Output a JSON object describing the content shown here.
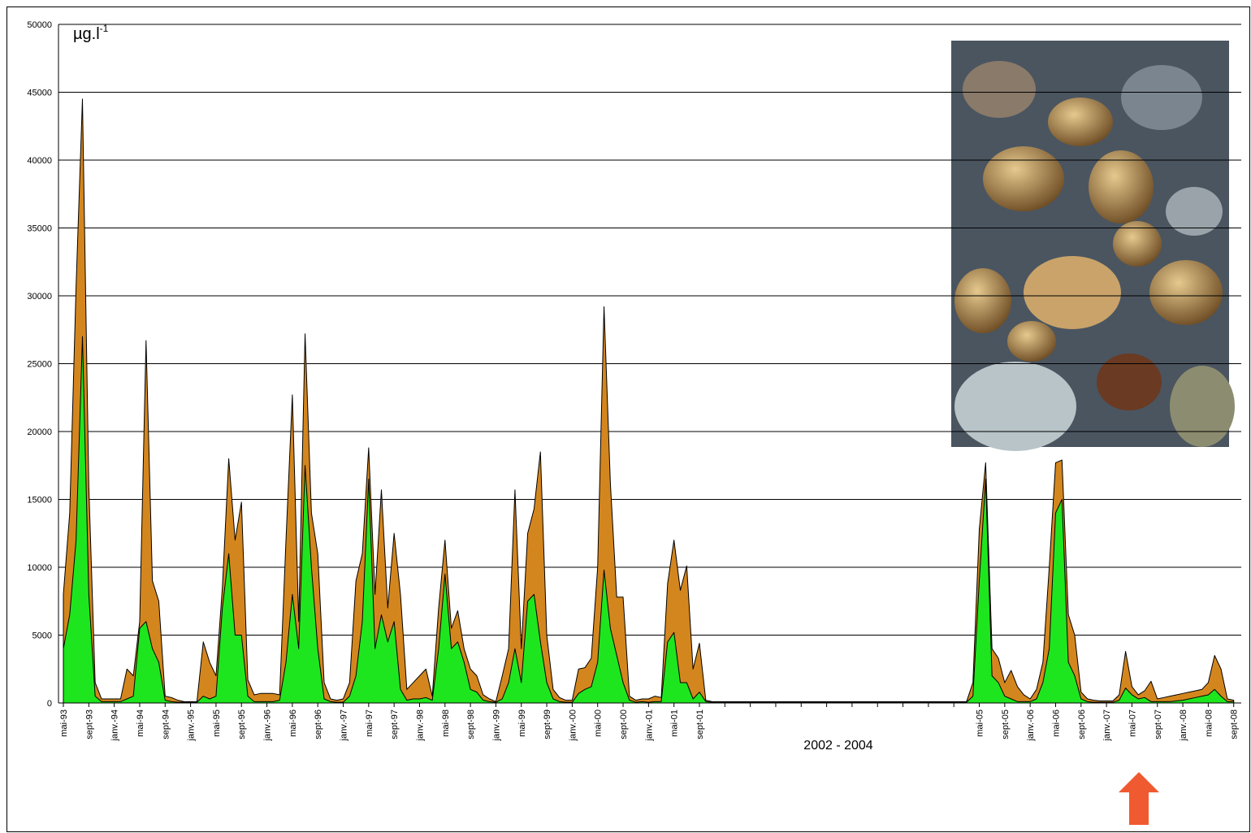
{
  "chart_data": {
    "type": "area",
    "y_unit": "µg.l",
    "y_unit_sup": "-1",
    "annotation": "2002 - 2004",
    "ylim": [
      0,
      50000
    ],
    "yticks": [
      0,
      5000,
      10000,
      15000,
      20000,
      25000,
      30000,
      35000,
      40000,
      45000,
      50000
    ],
    "grid": true,
    "categories": [
      "mai-93",
      null,
      null,
      null,
      "sept-93",
      null,
      null,
      null,
      "janv.-94",
      null,
      null,
      null,
      "mai-94",
      null,
      null,
      null,
      "sept-94",
      null,
      null,
      null,
      "janv.-95",
      null,
      null,
      null,
      "mai-95",
      null,
      null,
      null,
      "sept-95",
      null,
      null,
      null,
      "janv.-96",
      null,
      null,
      null,
      "mai-96",
      null,
      null,
      null,
      "sept-96",
      null,
      null,
      null,
      "janv.-97",
      null,
      null,
      null,
      "mai-97",
      null,
      null,
      null,
      "sept-97",
      null,
      null,
      null,
      "janv.-98",
      null,
      null,
      null,
      "mai-98",
      null,
      null,
      null,
      "sept-98",
      null,
      null,
      null,
      "janv.-99",
      null,
      null,
      null,
      "mai-99",
      null,
      null,
      null,
      "sept-99",
      null,
      null,
      null,
      "janv.-00",
      null,
      null,
      null,
      "mai-00",
      null,
      null,
      null,
      "sept-00",
      null,
      null,
      null,
      "janv.-01",
      null,
      null,
      null,
      "mai-01",
      null,
      null,
      null,
      "sept-01",
      null,
      null,
      null,
      null,
      null,
      null,
      null,
      null,
      null,
      null,
      null,
      null,
      null,
      null,
      null,
      null,
      null,
      null,
      null,
      null,
      null,
      null,
      null,
      null,
      null,
      null,
      null,
      null,
      null,
      null,
      null,
      null,
      null,
      null,
      null,
      null,
      null,
      null,
      null,
      null,
      null,
      null,
      null,
      "mai-05",
      null,
      null,
      null,
      "sept-05",
      null,
      null,
      null,
      "janv.-06",
      null,
      null,
      null,
      "mai-06",
      null,
      null,
      null,
      "sept-06",
      null,
      null,
      null,
      "janv.-07",
      null,
      null,
      null,
      "mai-07",
      null,
      null,
      null,
      "sept-07",
      null,
      null,
      null,
      "janv.-08",
      null,
      null,
      null,
      "mai-08",
      null,
      null,
      null,
      "sept-08"
    ],
    "series": [
      {
        "color": "#d4861e",
        "values": [
          8000,
          14000,
          30700,
          44500,
          16000,
          1500,
          300,
          300,
          300,
          300,
          2500,
          2000,
          6000,
          26700,
          9000,
          7500,
          500,
          400,
          200,
          100,
          100,
          100,
          4500,
          3000,
          2000,
          8500,
          18000,
          12000,
          14800,
          1700,
          600,
          700,
          700,
          700,
          600,
          12000,
          22700,
          6000,
          27200,
          14000,
          11000,
          1500,
          300,
          200,
          300,
          1500,
          9000,
          11000,
          18800,
          8000,
          15700,
          7000,
          12500,
          8000,
          1000,
          1500,
          2000,
          2500,
          500,
          7000,
          12000,
          5500,
          6800,
          4000,
          2500,
          2000,
          600,
          300,
          100,
          2000,
          4000,
          15700,
          4000,
          12500,
          14300,
          18500,
          5000,
          1000,
          400,
          200,
          200,
          2500,
          2600,
          3300,
          10000,
          29200,
          16200,
          7800,
          7800,
          500,
          200,
          300,
          300,
          500,
          400,
          8800,
          12000,
          8300,
          10100,
          2500,
          4400,
          200,
          100,
          100,
          100,
          100,
          100,
          100,
          100,
          100,
          100,
          100,
          100,
          100,
          100,
          100,
          100,
          100,
          100,
          100,
          100,
          100,
          100,
          100,
          100,
          100,
          100,
          100,
          100,
          100,
          100,
          100,
          100,
          100,
          100,
          100,
          100,
          100,
          100,
          100,
          100,
          100,
          100,
          1500,
          12800,
          17700,
          4000,
          3300,
          1500,
          2400,
          1200,
          600,
          300,
          1000,
          3000,
          10000,
          17700,
          17900,
          6500,
          5000,
          800,
          300,
          200,
          150,
          150,
          150,
          600,
          3800,
          1200,
          600,
          900,
          1600,
          300,
          400,
          500,
          600,
          700,
          800,
          900,
          1000,
          1500,
          3500,
          2500,
          300,
          200
        ]
      },
      {
        "color": "#1ee61e",
        "values": [
          4000,
          6500,
          12000,
          27000,
          8000,
          500,
          100,
          100,
          100,
          100,
          300,
          500,
          5500,
          6000,
          4000,
          3000,
          200,
          100,
          50,
          50,
          50,
          50,
          500,
          300,
          500,
          7000,
          11000,
          5000,
          5000,
          500,
          100,
          100,
          100,
          100,
          200,
          3000,
          8000,
          4000,
          17500,
          10000,
          4000,
          300,
          100,
          50,
          50,
          500,
          2000,
          6000,
          16500,
          4000,
          6500,
          4500,
          6000,
          1000,
          200,
          300,
          300,
          400,
          200,
          4000,
          9500,
          4000,
          4500,
          3000,
          1000,
          800,
          200,
          100,
          50,
          300,
          1500,
          4000,
          1500,
          7500,
          8000,
          4500,
          1500,
          300,
          100,
          50,
          50,
          700,
          1000,
          1200,
          3000,
          9800,
          5500,
          3500,
          1500,
          200,
          50,
          100,
          50,
          100,
          100,
          4500,
          5200,
          1500,
          1500,
          300,
          800,
          100,
          50,
          50,
          50,
          50,
          50,
          50,
          50,
          50,
          50,
          50,
          50,
          50,
          50,
          50,
          50,
          50,
          50,
          50,
          50,
          50,
          50,
          50,
          50,
          50,
          50,
          50,
          50,
          50,
          50,
          50,
          50,
          50,
          50,
          50,
          50,
          50,
          50,
          50,
          50,
          50,
          50,
          500,
          9000,
          16500,
          2000,
          1500,
          500,
          300,
          100,
          100,
          100,
          300,
          1500,
          4000,
          14000,
          15000,
          3000,
          2000,
          300,
          100,
          50,
          50,
          50,
          50,
          200,
          1100,
          600,
          300,
          400,
          100,
          100,
          100,
          100,
          150,
          200,
          300,
          400,
          500,
          600,
          1000,
          500,
          100,
          100
        ]
      }
    ]
  }
}
